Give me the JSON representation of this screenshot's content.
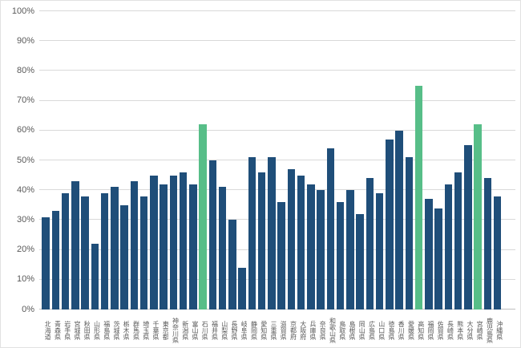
{
  "chart_data": {
    "type": "bar",
    "title": "",
    "xlabel": "",
    "ylabel": "",
    "ylim": [
      0,
      100
    ],
    "grid": true,
    "legend": "none",
    "y_ticks": [
      "0%",
      "10%",
      "20%",
      "30%",
      "40%",
      "50%",
      "60%",
      "70%",
      "80%",
      "90%",
      "100%"
    ],
    "categories": [
      "北海道",
      "青森県",
      "岩手県",
      "宮城県",
      "秋田県",
      "山形県",
      "福島県",
      "茨城県",
      "栃木県",
      "群馬県",
      "埼玉県",
      "千葉県",
      "東京都",
      "神奈川県",
      "新潟県",
      "富山県",
      "石川県",
      "福井県",
      "山梨県",
      "長野県",
      "岐阜県",
      "静岡県",
      "愛知県",
      "三重県",
      "滋賀県",
      "京都府",
      "大阪府",
      "兵庫県",
      "奈良県",
      "和歌山県",
      "鳥取県",
      "島根県",
      "岡山県",
      "広島県",
      "山口県",
      "徳島県",
      "香川県",
      "愛媛県",
      "高知県",
      "福岡県",
      "佐賀県",
      "長崎県",
      "熊本県",
      "大分県",
      "宮崎県",
      "鹿児島県",
      "沖縄県"
    ],
    "values": [
      31,
      33,
      39,
      43,
      38,
      22,
      39,
      41,
      35,
      43,
      38,
      45,
      42,
      45,
      46,
      42,
      62,
      50,
      41,
      30,
      14,
      51,
      46,
      51,
      36,
      47,
      45,
      42,
      40,
      54,
      36,
      40,
      32,
      44,
      39,
      57,
      60,
      51,
      75,
      37,
      34,
      42,
      46,
      55,
      62,
      44,
      38
    ],
    "highlighted_categories": [
      "石川県",
      "高知県",
      "宮崎県"
    ],
    "highlight_indices": [
      16,
      38,
      44
    ],
    "colors": {
      "bar": "#1F4E79",
      "highlight": "#57BE88",
      "gridline": "#D9D9D9",
      "axis_line": "#BFBFBF",
      "tick_label": "#595959"
    }
  }
}
